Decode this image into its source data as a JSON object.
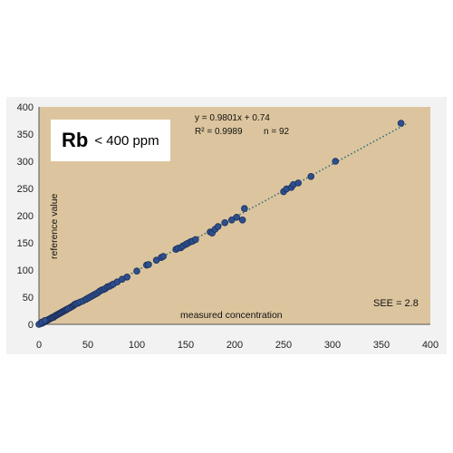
{
  "chart_data": {
    "type": "scatter",
    "title": "Rb",
    "subtitle": "< 400 ppm",
    "xlabel": "measured concentration",
    "ylabel": "reference value",
    "xlim": [
      0,
      400
    ],
    "ylim": [
      0,
      400
    ],
    "xticks": [
      "0",
      "50",
      "100",
      "150",
      "200",
      "250",
      "300",
      "350",
      "400"
    ],
    "yticks": [
      "0",
      "50",
      "100",
      "150",
      "200",
      "250",
      "300",
      "350",
      "400"
    ],
    "grid": false,
    "colors": {
      "plot_bg": "#dcc59e",
      "marker": "#2d4f8e",
      "marker_edge": "#1c2f5a",
      "trend": "#2f6f7a"
    },
    "trendline": {
      "slope": 0.9801,
      "intercept": 0.74
    },
    "annotations": {
      "equation": "y = 0.9801x + 0.74",
      "r2": "R² = 0.9989",
      "n": "n = 92",
      "see": "SEE = 2.8"
    },
    "points": [
      [
        1,
        1
      ],
      [
        2,
        2
      ],
      [
        3,
        2
      ],
      [
        4,
        3
      ],
      [
        5,
        4
      ],
      [
        6,
        5
      ],
      [
        7,
        6
      ],
      [
        8,
        7
      ],
      [
        9,
        8
      ],
      [
        10,
        9
      ],
      [
        11,
        10
      ],
      [
        12,
        11
      ],
      [
        13,
        12
      ],
      [
        14,
        13
      ],
      [
        15,
        13
      ],
      [
        16,
        15
      ],
      [
        17,
        16
      ],
      [
        18,
        17
      ],
      [
        19,
        18
      ],
      [
        20,
        19
      ],
      [
        21,
        20
      ],
      [
        22,
        21
      ],
      [
        23,
        22
      ],
      [
        24,
        23
      ],
      [
        25,
        24
      ],
      [
        26,
        25
      ],
      [
        27,
        26
      ],
      [
        28,
        27
      ],
      [
        29,
        28
      ],
      [
        30,
        29
      ],
      [
        32,
        31
      ],
      [
        34,
        33
      ],
      [
        35,
        34
      ],
      [
        36,
        36
      ],
      [
        37,
        37
      ],
      [
        38,
        38
      ],
      [
        40,
        39
      ],
      [
        42,
        41
      ],
      [
        45,
        43
      ],
      [
        48,
        46
      ],
      [
        50,
        48
      ],
      [
        52,
        50
      ],
      [
        54,
        52
      ],
      [
        56,
        54
      ],
      [
        58,
        56
      ],
      [
        60,
        58
      ],
      [
        62,
        61
      ],
      [
        64,
        63
      ],
      [
        66,
        64
      ],
      [
        68,
        66
      ],
      [
        70,
        69
      ],
      [
        72,
        70
      ],
      [
        74,
        72
      ],
      [
        76,
        74
      ],
      [
        80,
        78
      ],
      [
        85,
        83
      ],
      [
        90,
        87
      ],
      [
        100,
        98
      ],
      [
        110,
        109
      ],
      [
        112,
        110
      ],
      [
        120,
        118
      ],
      [
        125,
        123
      ],
      [
        127,
        125
      ],
      [
        140,
        138
      ],
      [
        142,
        140
      ],
      [
        145,
        141
      ],
      [
        147,
        144
      ],
      [
        150,
        147
      ],
      [
        152,
        149
      ],
      [
        155,
        152
      ],
      [
        157,
        153
      ],
      [
        160,
        156
      ],
      [
        175,
        170
      ],
      [
        177,
        168
      ],
      [
        180,
        175
      ],
      [
        183,
        180
      ],
      [
        190,
        187
      ],
      [
        197,
        192
      ],
      [
        202,
        197
      ],
      [
        208,
        192
      ],
      [
        210,
        213
      ],
      [
        250,
        244
      ],
      [
        253,
        249
      ],
      [
        258,
        252
      ],
      [
        260,
        257
      ],
      [
        265,
        260
      ],
      [
        278,
        272
      ],
      [
        303,
        300
      ],
      [
        370,
        370
      ],
      [
        0,
        0
      ],
      [
        3,
        4
      ],
      [
        6,
        7
      ]
    ]
  }
}
